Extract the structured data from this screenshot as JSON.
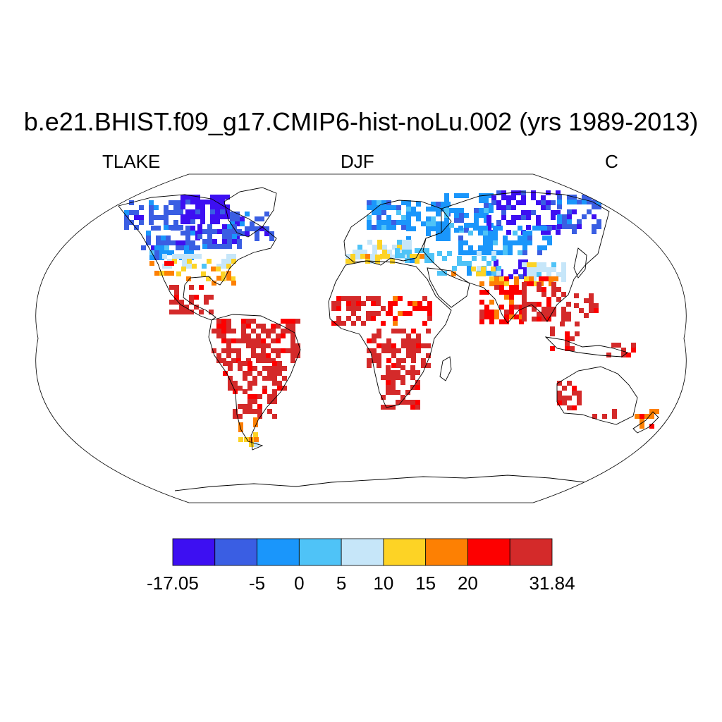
{
  "title": "b.e21.BHIST.f09_g17.CMIP6-hist-noLu.002 (yrs 1989-2013)",
  "subtitle_left": "TLAKE",
  "subtitle_center": "DJF",
  "subtitle_right": "C",
  "chart_data": {
    "type": "heatmap",
    "projection": "Robinson",
    "variable": "TLAKE",
    "season": "DJF",
    "units": "C",
    "colorbar": {
      "colors": [
        "#3d0ff2",
        "#3a5ee3",
        "#1a96fb",
        "#4fc3f7",
        "#c6e6f9",
        "#fdd325",
        "#fd8003",
        "#fd0000",
        "#d42a2a"
      ],
      "boundaries": [
        -17.05,
        -10,
        -5,
        0,
        5,
        10,
        15,
        20,
        25,
        31.84
      ],
      "labels": [
        {
          "text": "-17.05",
          "value": -17.05
        },
        {
          "text": "-5",
          "value": -5
        },
        {
          "text": "0",
          "value": 0
        },
        {
          "text": "5",
          "value": 5
        },
        {
          "text": "10",
          "value": 10
        },
        {
          "text": "15",
          "value": 15
        },
        {
          "text": "20",
          "value": 20
        },
        {
          "text": "31.84",
          "value": 31.84
        }
      ]
    }
  }
}
